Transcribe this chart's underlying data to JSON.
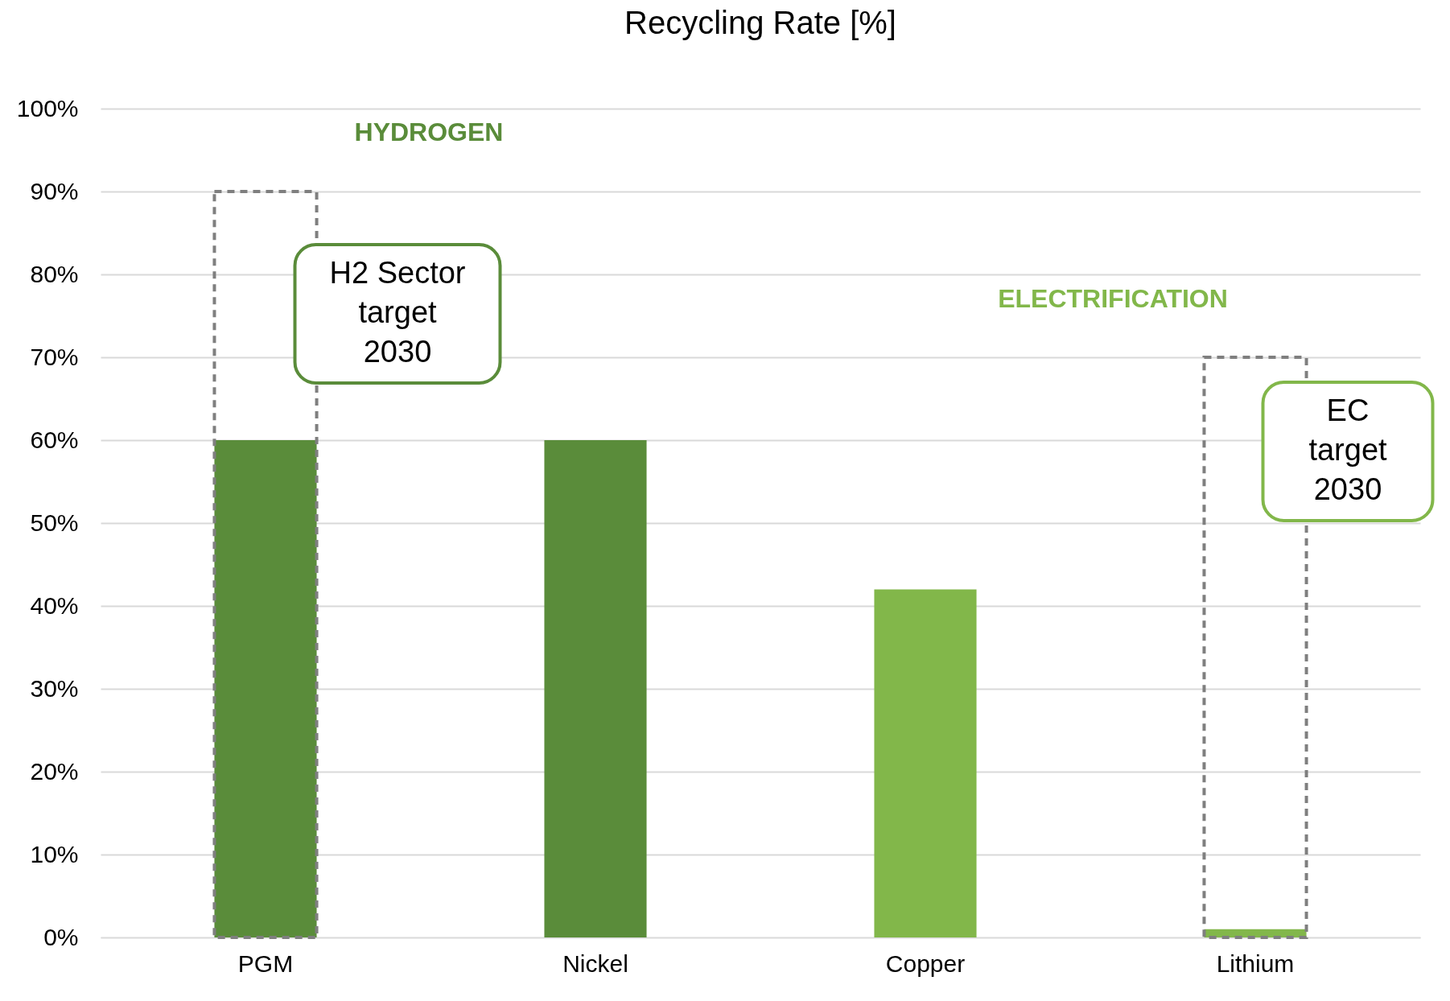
{
  "chart_data": {
    "type": "bar",
    "title": "Recycling Rate [%]",
    "categories": [
      "PGM",
      "Nickel",
      "Copper",
      "Lithium"
    ],
    "series": [
      {
        "colors": [
          "#5a8c3a",
          "#5a8c3a",
          "#82b74a",
          "#82b74a"
        ],
        "values": [
          60,
          60,
          42,
          1
        ]
      },
      {
        "color": "#7f7f7f",
        "line_style": "dashed",
        "values": [
          90,
          null,
          null,
          70
        ]
      }
    ],
    "ylim": [
      0,
      100
    ],
    "yticks": [
      {
        "value": 0,
        "label": "0%"
      },
      {
        "value": 10,
        "label": "10%"
      },
      {
        "value": 20,
        "label": "20%"
      },
      {
        "value": 30,
        "label": "30%"
      },
      {
        "value": 40,
        "label": "40%"
      },
      {
        "value": 50,
        "label": "50%"
      },
      {
        "value": 60,
        "label": "60%"
      },
      {
        "value": 70,
        "label": "70%"
      },
      {
        "value": 80,
        "label": "80%"
      },
      {
        "value": 90,
        "label": "90%"
      },
      {
        "value": 100,
        "label": "100%"
      }
    ],
    "grid": "y",
    "annotations": [
      "HYDROGEN",
      "ELECTRIFICATION",
      "H2 Sector target 2030",
      "EC target 2030"
    ]
  }
}
